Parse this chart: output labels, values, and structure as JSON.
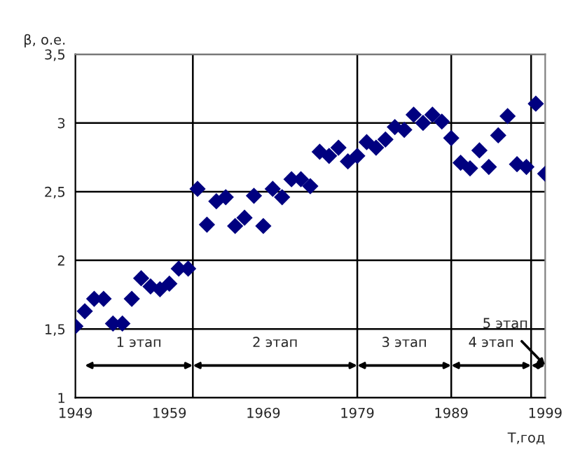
{
  "chart_data": {
    "type": "scatter",
    "xlabel": "T,год",
    "ylabel": "β, о.е.",
    "x": [
      1949,
      1950,
      1951,
      1952,
      1953,
      1954,
      1955,
      1956,
      1957,
      1958,
      1959,
      1960,
      1961,
      1962,
      1963,
      1964,
      1965,
      1966,
      1967,
      1968,
      1969,
      1970,
      1971,
      1972,
      1973,
      1974,
      1975,
      1976,
      1977,
      1978,
      1979,
      1980,
      1981,
      1982,
      1983,
      1984,
      1985,
      1986,
      1987,
      1988,
      1989,
      1990,
      1991,
      1992,
      1993,
      1994,
      1995,
      1996,
      1997,
      1998,
      1999
    ],
    "series": [
      {
        "color": "#000080",
        "values": [
          1.52,
          1.63,
          1.72,
          1.72,
          1.54,
          1.54,
          1.72,
          1.87,
          1.81,
          1.79,
          1.83,
          1.94,
          1.94,
          2.52,
          2.26,
          2.43,
          2.46,
          2.25,
          2.31,
          2.47,
          2.25,
          2.52,
          2.46,
          2.59,
          2.59,
          2.54,
          2.79,
          2.76,
          2.82,
          2.72,
          2.76,
          2.86,
          2.82,
          2.88,
          2.97,
          2.95,
          3.06,
          3.0,
          3.06,
          3.01,
          2.89,
          2.71,
          2.67,
          2.8,
          2.68,
          2.91,
          3.05,
          2.7,
          2.68,
          3.14,
          2.63
        ]
      }
    ],
    "marker": "diamond",
    "xlim": [
      1949,
      1999
    ],
    "ylim": [
      1,
      3.5
    ],
    "xticks": [
      1949,
      1959,
      1969,
      1979,
      1989,
      1999
    ],
    "yticks": [
      1,
      {
        "value": 1.5,
        "label": "1,5"
      },
      2,
      {
        "value": 2.5,
        "label": "2,5"
      },
      3,
      {
        "value": 3.5,
        "label": "3,5"
      }
    ],
    "grid": "y",
    "legend": false,
    "ref_lines": [
      {
        "axis": "x",
        "value": 1961.5,
        "color": "#000000"
      },
      {
        "axis": "x",
        "value": 1979,
        "color": "#000000"
      },
      {
        "axis": "x",
        "value": 1989,
        "color": "#000000"
      },
      {
        "axis": "x",
        "value": 1997.5,
        "color": "#000000"
      }
    ],
    "annotations": [
      "1 этап",
      "2 этап",
      "3 этап",
      "4 этап",
      "5 этап"
    ]
  }
}
